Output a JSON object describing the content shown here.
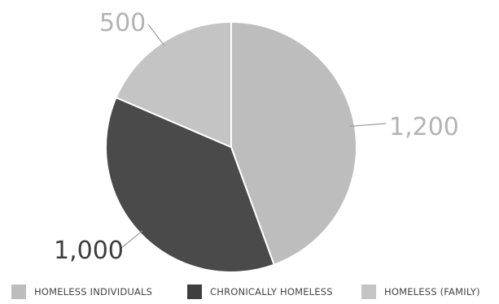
{
  "chart_data": {
    "type": "pie",
    "categories": [
      "HOMELESS INDIVIDUALS",
      "CHRONICALLY HOMELESS",
      "HOMELESS (FAMILY)"
    ],
    "values": [
      1200,
      1000,
      500
    ],
    "data_labels": [
      "1,200",
      "1,000",
      "500"
    ],
    "colors": [
      "#bdbdbd",
      "#4a4a4a",
      "#c4c4c4"
    ],
    "label_colors": [
      "#b3b3b3",
      "#3c3c3c",
      "#b3b3b3"
    ],
    "start_angle_deg": 0,
    "direction": "clockwise",
    "legend_position": "bottom"
  },
  "legend": {
    "items": [
      {
        "label": "HOMELESS INDIVIDUALS",
        "color": "#bdbdbd"
      },
      {
        "label": "CHRONICALLY HOMELESS",
        "color": "#3f3f3f"
      },
      {
        "label": "HOMELESS (FAMILY)",
        "color": "#c4c4c4"
      }
    ]
  }
}
